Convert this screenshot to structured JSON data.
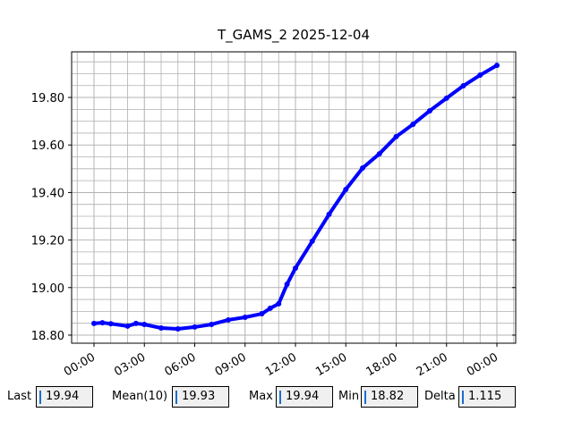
{
  "chart_data": {
    "type": "line",
    "title": "T_GAMS_2 2025-12-04",
    "x": [
      0,
      0.5,
      1,
      2,
      2.5,
      3,
      4,
      5,
      6,
      7,
      8,
      9,
      10,
      10.5,
      11,
      11.5,
      12,
      13,
      14,
      15,
      16,
      17,
      18,
      19,
      20,
      21,
      22,
      23,
      24
    ],
    "series": [
      {
        "name": "T_GAMS_2",
        "color": "#0000ff",
        "values": [
          18.849,
          18.852,
          18.848,
          18.838,
          18.849,
          18.845,
          18.83,
          18.826,
          18.834,
          18.845,
          18.864,
          18.875,
          18.89,
          18.913,
          18.932,
          19.014,
          19.082,
          19.195,
          19.308,
          19.413,
          19.503,
          19.563,
          19.635,
          19.687,
          19.744,
          19.797,
          19.849,
          19.894,
          19.935
        ]
      }
    ],
    "xlim": [
      -1.333,
      25.12
    ],
    "xticks": [
      {
        "value": 0,
        "label": "00:00"
      },
      {
        "value": 3,
        "label": "03:00"
      },
      {
        "value": 6,
        "label": "06:00"
      },
      {
        "value": 9,
        "label": "09:00"
      },
      {
        "value": 12,
        "label": "12:00"
      },
      {
        "value": 15,
        "label": "15:00"
      },
      {
        "value": 18,
        "label": "18:00"
      },
      {
        "value": 21,
        "label": "21:00"
      },
      {
        "value": 24,
        "label": "00:00"
      }
    ],
    "ylim": [
      18.766,
      19.992
    ],
    "yticks": [
      {
        "value": 18.8,
        "label": "18.80"
      },
      {
        "value": 19.0,
        "label": "19.00"
      },
      {
        "value": 19.2,
        "label": "19.20"
      },
      {
        "value": 19.4,
        "label": "19.40"
      },
      {
        "value": 19.6,
        "label": "19.60"
      },
      {
        "value": 19.8,
        "label": "19.80"
      }
    ],
    "grid": true
  },
  "stats": [
    {
      "label": "Last",
      "value": 19.94
    },
    {
      "label": "Mean(10)",
      "value": 19.93
    },
    {
      "label": "Max",
      "value": 19.94
    },
    {
      "label": "Min",
      "value": 18.82
    },
    {
      "label": "Delta",
      "value": 1.115
    }
  ]
}
